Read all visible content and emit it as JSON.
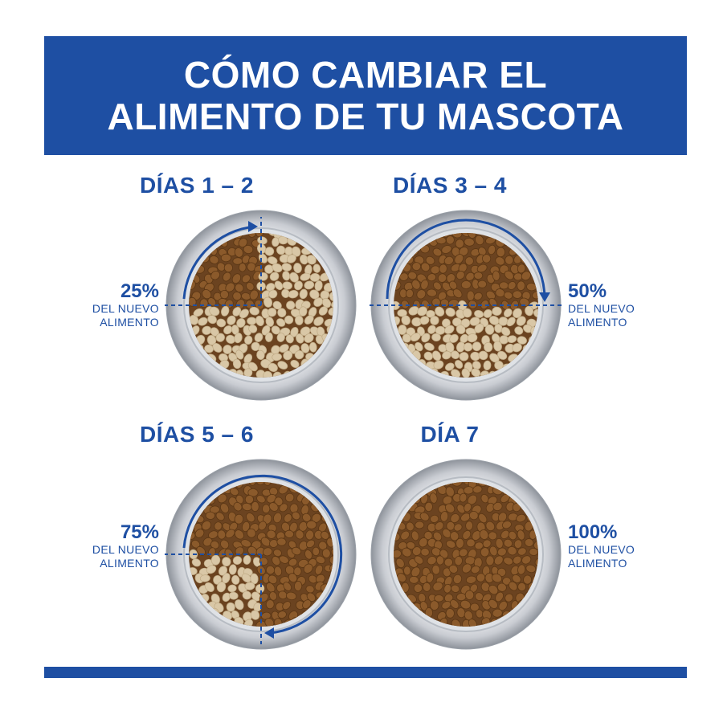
{
  "header": {
    "line1": "CÓMO CAMBIAR EL",
    "line2": "ALIMENTO DE TU MASCOTA"
  },
  "colors": {
    "brand_blue": "#1e4fa3",
    "kibble_new": "#8b5a2b",
    "kibble_old": "#d9c7a6"
  },
  "steps": [
    {
      "title": "DÍAS 1 – 2",
      "percent": "25%",
      "line1": "DEL NUEVO",
      "line2": "ALIMENTO",
      "new_fraction": 0.25
    },
    {
      "title": "DÍAS 3 – 4",
      "percent": "50%",
      "line1": "DEL NUEVO",
      "line2": "ALIMENTO",
      "new_fraction": 0.5
    },
    {
      "title": "DÍAS 5 – 6",
      "percent": "75%",
      "line1": "DEL NUEVO",
      "line2": "ALIMENTO",
      "new_fraction": 0.75
    },
    {
      "title": "DÍA 7",
      "percent": "100%",
      "line1": "DEL NUEVO",
      "line2": "ALIMENTO",
      "new_fraction": 1.0
    }
  ]
}
